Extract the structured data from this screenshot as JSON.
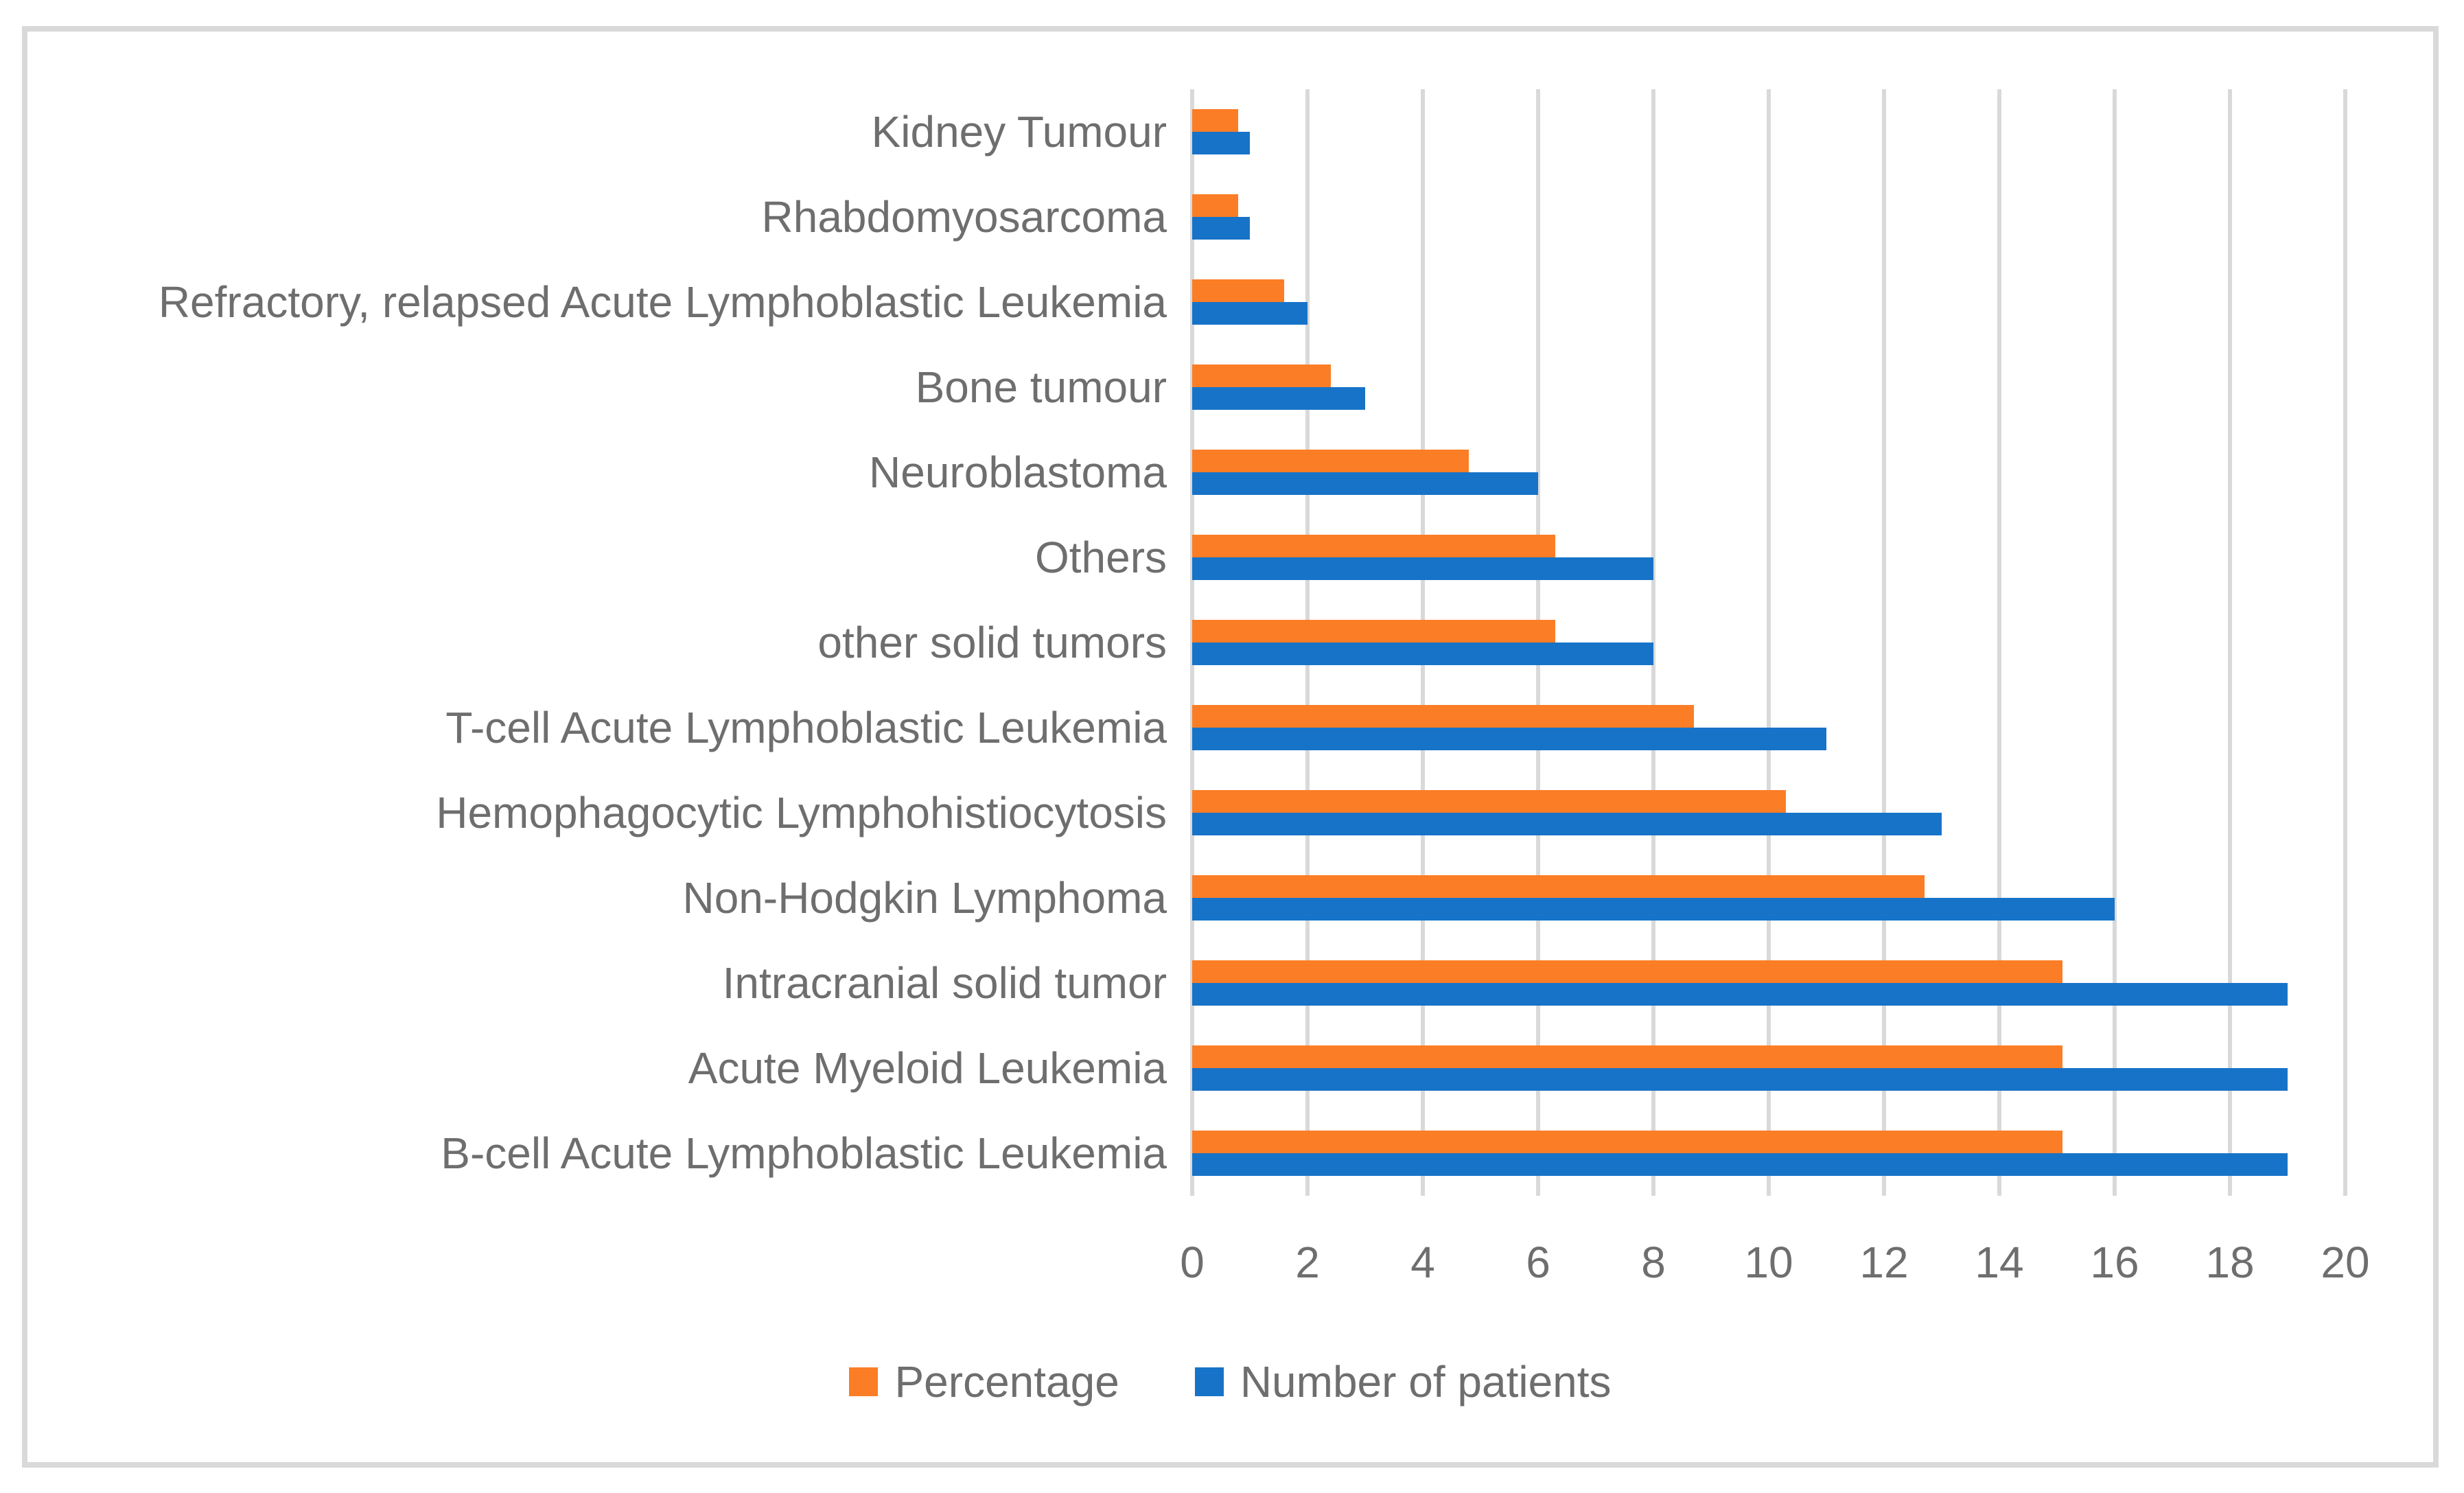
{
  "chart_data": {
    "type": "bar",
    "orientation": "horizontal",
    "title": "",
    "xlabel": "",
    "ylabel": "",
    "xlim": [
      0,
      20
    ],
    "xticks": [
      0,
      2,
      4,
      6,
      8,
      10,
      12,
      14,
      16,
      18,
      20
    ],
    "grid": true,
    "legend_position": "bottom",
    "categories": [
      "Kidney Tumour",
      "Rhabdomyosarcoma",
      "Refractory, relapsed Acute Lymphoblastic Leukemia",
      "Bone tumour",
      "Neuroblastoma",
      "Others",
      "other solid tumors",
      "T-cell Acute Lymphoblastic Leukemia",
      "Hemophagocytic Lymphohistiocytosis",
      "Non-Hodgkin Lymphoma",
      "Intracranial solid tumor",
      "Acute Myeloid Leukemia",
      "B-cell Acute Lymphoblastic Leukemia"
    ],
    "series": [
      {
        "name": "Percentage",
        "color": "#FB7D26",
        "values": [
          0.8,
          0.8,
          1.6,
          2.4,
          4.8,
          6.3,
          6.3,
          8.7,
          10.3,
          12.7,
          15.1,
          15.1,
          15.1
        ]
      },
      {
        "name": "Number of patients",
        "color": "#1773C8",
        "values": [
          1,
          1,
          2,
          3,
          6,
          8,
          8,
          11,
          13,
          16,
          19,
          19,
          19
        ]
      }
    ]
  },
  "colors": {
    "gridline": "#D9D9D9",
    "panel_border": "#D9D9D9",
    "text": "#6E6E6E",
    "background": "#FFFFFF"
  }
}
